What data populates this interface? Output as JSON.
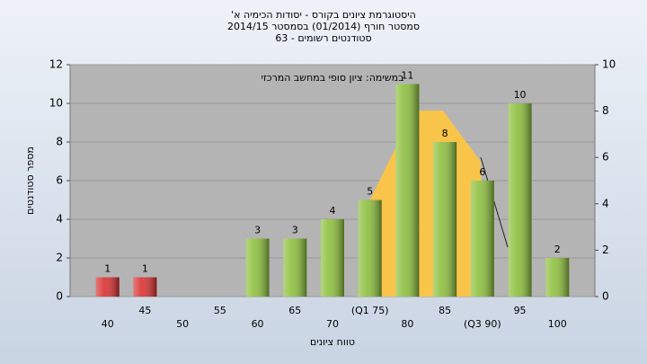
{
  "chart_data": {
    "type": "bar",
    "title": [
      "היסטוגרמת ציונים בקורס - יסודות הכימיה א'",
      "סמסטר חורף (01/2014) בסמסטר 2014/15",
      "סטודנטים רשומים - 63"
    ],
    "annotation": "במשימה: ציון סופי במחשב המרכזי",
    "x_label": "טווח ציונים",
    "y_label": "מספר סטודנטים",
    "categories": [
      "40",
      "45",
      "50",
      "55",
      "60",
      "65",
      "70",
      "(Q1 75)",
      "80",
      "85",
      "(Q3 90)",
      "95",
      "100"
    ],
    "values": [
      1,
      1,
      0,
      0,
      3,
      3,
      4,
      5,
      11,
      8,
      6,
      10,
      2
    ],
    "colors": [
      "#d93030",
      "#d93030",
      "#8cbf3c",
      "#8cbf3c",
      "#8cbf3c",
      "#8cbf3c",
      "#8cbf3c",
      "#8cbf3c",
      "#8cbf3c",
      "#8cbf3c",
      "#8cbf3c",
      "#8cbf3c",
      "#8cbf3c"
    ],
    "ylim": [
      0,
      12
    ],
    "yticks": [
      0,
      2,
      4,
      6,
      8,
      10,
      12
    ],
    "y2lim": [
      0,
      10
    ],
    "y2ticks": [
      0,
      2,
      4,
      6,
      8,
      10
    ],
    "grid": true
  }
}
